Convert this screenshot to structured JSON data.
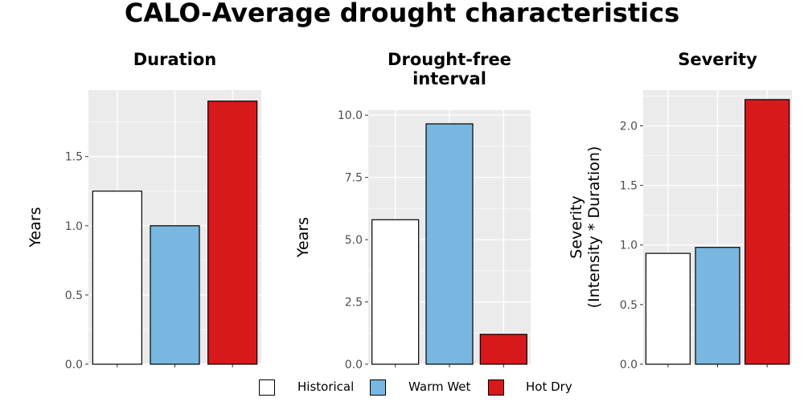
{
  "title": "CALO-Average drought characteristics",
  "colors": {
    "Historical": "#ffffff",
    "Warm Wet": "#78b7e0",
    "Hot Dry": "#d7191c",
    "panel_bg": "#ebebeb",
    "grid": "#ffffff",
    "axis_text": "#4d4d4d"
  },
  "legend": [
    {
      "label": "Historical"
    },
    {
      "label": "Warm Wet"
    },
    {
      "label": "Hot Dry"
    }
  ],
  "chart_data": [
    {
      "type": "bar",
      "title": "Duration",
      "ylabel": "Years",
      "categories": [
        "Historical",
        "Warm Wet",
        "Hot Dry"
      ],
      "values": [
        1.25,
        1.0,
        1.9
      ],
      "ylim": [
        0,
        1.98
      ],
      "yticks": [
        0.0,
        0.5,
        1.0,
        1.5
      ],
      "ytick_labels": [
        "0.0",
        "0.5",
        "1.0",
        "1.5"
      ]
    },
    {
      "type": "bar",
      "title": "Drought-free interval",
      "ylabel": "Years",
      "categories": [
        "Historical",
        "Warm Wet",
        "Hot Dry"
      ],
      "values": [
        5.8,
        9.65,
        1.2
      ],
      "ylim": [
        0,
        10.2
      ],
      "yticks": [
        0.0,
        2.5,
        5.0,
        7.5,
        10.0
      ],
      "ytick_labels": [
        "0.0",
        "2.5",
        "5.0",
        "7.5",
        "10.0"
      ]
    },
    {
      "type": "bar",
      "title": "Severity",
      "ylabel": "Severity (Intensity * Duration)",
      "categories": [
        "Historical",
        "Warm Wet",
        "Hot Dry"
      ],
      "values": [
        0.93,
        0.98,
        2.22
      ],
      "ylim": [
        0,
        2.3
      ],
      "yticks": [
        0.0,
        0.5,
        1.0,
        1.5,
        2.0
      ],
      "ytick_labels": [
        "0.0",
        "0.5",
        "1.0",
        "1.5",
        "2.0"
      ]
    }
  ]
}
